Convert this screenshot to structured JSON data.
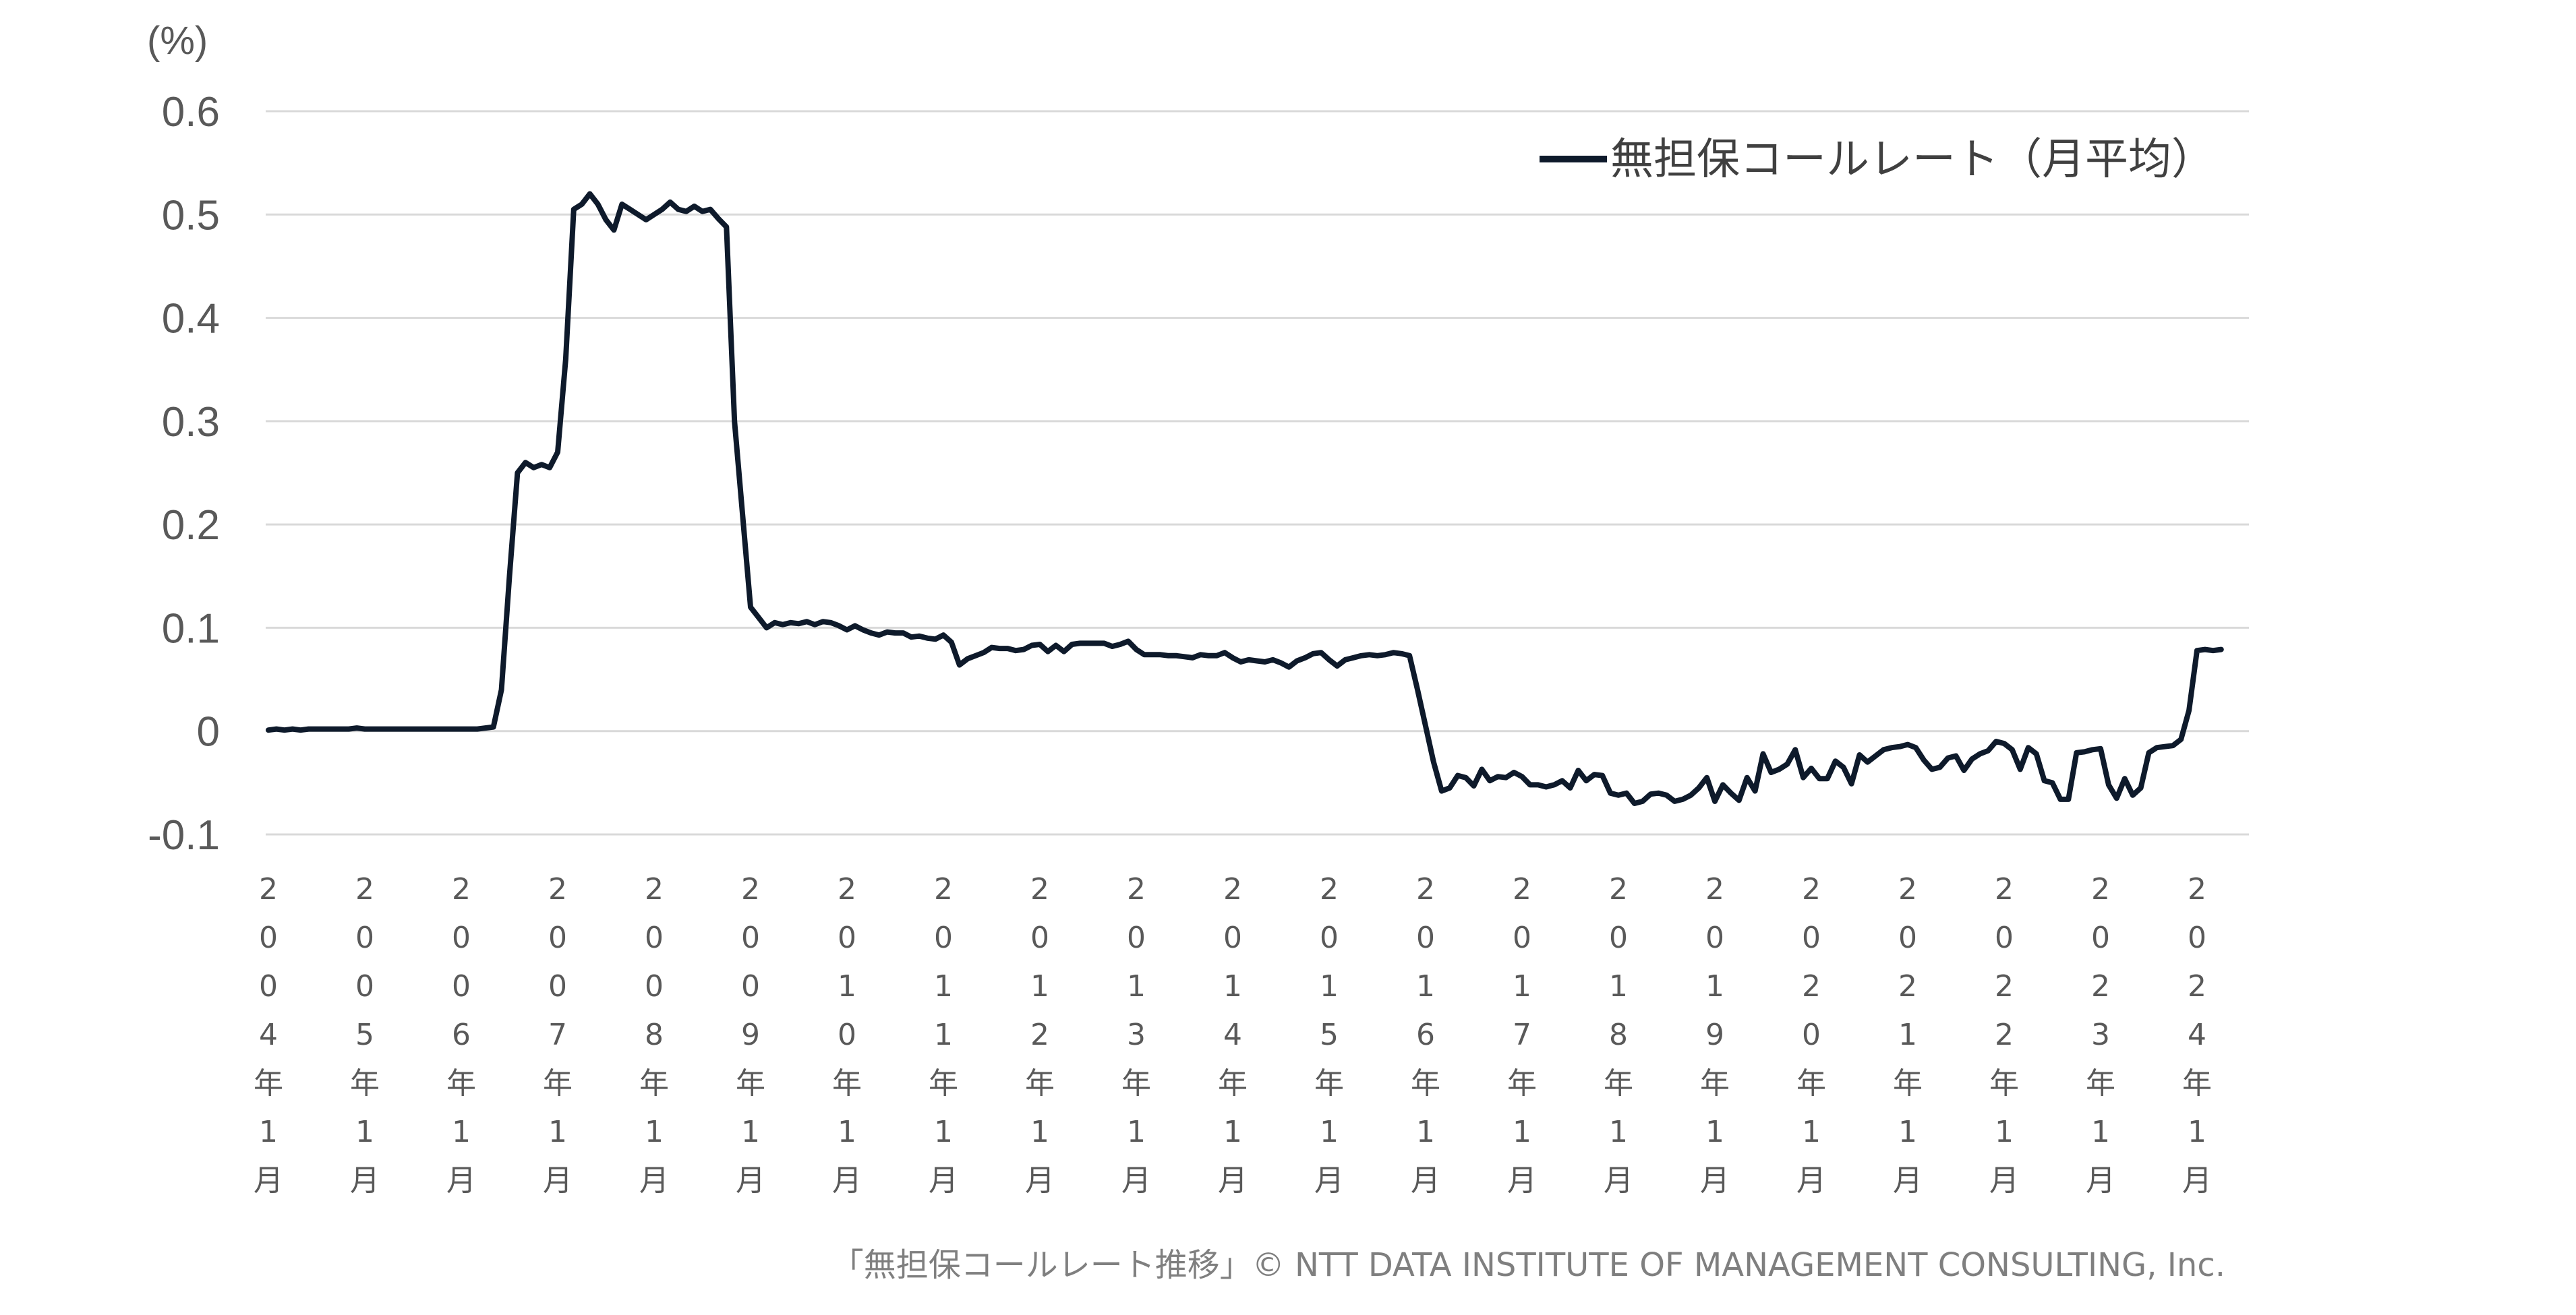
{
  "chart_data": {
    "type": "line",
    "unit_label": "(%)",
    "ylim": [
      -0.1,
      0.6
    ],
    "yticks": [
      "0.6",
      "0.5",
      "0.4",
      "0.3",
      "0.2",
      "0.1",
      "0",
      "-0.1"
    ],
    "ytick_values": [
      0.6,
      0.5,
      0.4,
      0.3,
      0.2,
      0.1,
      0,
      -0.1
    ],
    "grid": true,
    "legend_position": "top-right",
    "x_start": "2004-01",
    "x_labels": [
      "2004年1月",
      "2005年1月",
      "2006年1月",
      "2007年1月",
      "2008年1月",
      "2009年1月",
      "2010年1月",
      "2011年1月",
      "2012年1月",
      "2013年1月",
      "2014年1月",
      "2015年1月",
      "2016年1月",
      "2017年1月",
      "2018年1月",
      "2019年1月",
      "2020年1月",
      "2021年1月",
      "2022年1月",
      "2023年1月",
      "2024年1月"
    ],
    "series": [
      {
        "name": "無担保コールレート（月平均）",
        "color": "#0e1a2b",
        "values": [
          0.001,
          0.002,
          0.001,
          0.002,
          0.001,
          0.002,
          0.002,
          0.002,
          0.002,
          0.002,
          0.002,
          0.003,
          0.002,
          0.002,
          0.002,
          0.002,
          0.002,
          0.002,
          0.002,
          0.002,
          0.002,
          0.002,
          0.002,
          0.002,
          0.002,
          0.002,
          0.002,
          0.003,
          0.004,
          0.04,
          0.15,
          0.25,
          0.26,
          0.255,
          0.258,
          0.255,
          0.27,
          0.36,
          0.505,
          0.51,
          0.52,
          0.51,
          0.495,
          0.485,
          0.51,
          0.505,
          0.5,
          0.495,
          0.5,
          0.505,
          0.512,
          0.505,
          0.503,
          0.508,
          0.503,
          0.505,
          0.496,
          0.488,
          0.3,
          0.21,
          0.12,
          0.11,
          0.1,
          0.105,
          0.103,
          0.105,
          0.104,
          0.106,
          0.103,
          0.106,
          0.105,
          0.102,
          0.098,
          0.102,
          0.098,
          0.095,
          0.093,
          0.096,
          0.095,
          0.095,
          0.091,
          0.092,
          0.09,
          0.089,
          0.093,
          0.086,
          0.064,
          0.07,
          0.073,
          0.076,
          0.081,
          0.08,
          0.08,
          0.078,
          0.079,
          0.083,
          0.084,
          0.077,
          0.083,
          0.077,
          0.084,
          0.085,
          0.085,
          0.085,
          0.085,
          0.082,
          0.084,
          0.087,
          0.079,
          0.074,
          0.074,
          0.074,
          0.073,
          0.073,
          0.072,
          0.071,
          0.074,
          0.073,
          0.073,
          0.076,
          0.071,
          0.067,
          0.069,
          0.068,
          0.067,
          0.069,
          0.066,
          0.062,
          0.068,
          0.071,
          0.075,
          0.076,
          0.069,
          0.063,
          0.069,
          0.071,
          0.073,
          0.074,
          0.073,
          0.074,
          0.076,
          0.075,
          0.073,
          0.04,
          0.005,
          -0.03,
          -0.058,
          -0.055,
          -0.043,
          -0.045,
          -0.053,
          -0.037,
          -0.048,
          -0.044,
          -0.045,
          -0.04,
          -0.044,
          -0.052,
          -0.052,
          -0.054,
          -0.052,
          -0.048,
          -0.055,
          -0.038,
          -0.048,
          -0.042,
          -0.043,
          -0.06,
          -0.062,
          -0.06,
          -0.07,
          -0.068,
          -0.061,
          -0.06,
          -0.062,
          -0.068,
          -0.066,
          -0.062,
          -0.055,
          -0.045,
          -0.068,
          -0.052,
          -0.06,
          -0.067,
          -0.045,
          -0.058,
          -0.022,
          -0.04,
          -0.037,
          -0.032,
          -0.018,
          -0.045,
          -0.036,
          -0.046,
          -0.046,
          -0.029,
          -0.035,
          -0.051,
          -0.023,
          -0.03,
          -0.024,
          -0.018,
          -0.016,
          -0.015,
          -0.013,
          -0.016,
          -0.028,
          -0.037,
          -0.035,
          -0.026,
          -0.024,
          -0.038,
          -0.027,
          -0.022,
          -0.019,
          -0.01,
          -0.012,
          -0.018,
          -0.037,
          -0.016,
          -0.022,
          -0.048,
          -0.05,
          -0.066,
          -0.066,
          -0.021,
          -0.02,
          -0.018,
          -0.017,
          -0.052,
          -0.065,
          -0.046,
          -0.062,
          -0.055,
          -0.021,
          -0.016,
          -0.015,
          -0.014,
          -0.008,
          0.02,
          0.078,
          0.079,
          0.078,
          0.079
        ]
      }
    ],
    "credit": "「無担保コールレート推移」© NTT DATA INSTITUTE OF MANAGEMENT CONSULTING, Inc."
  }
}
